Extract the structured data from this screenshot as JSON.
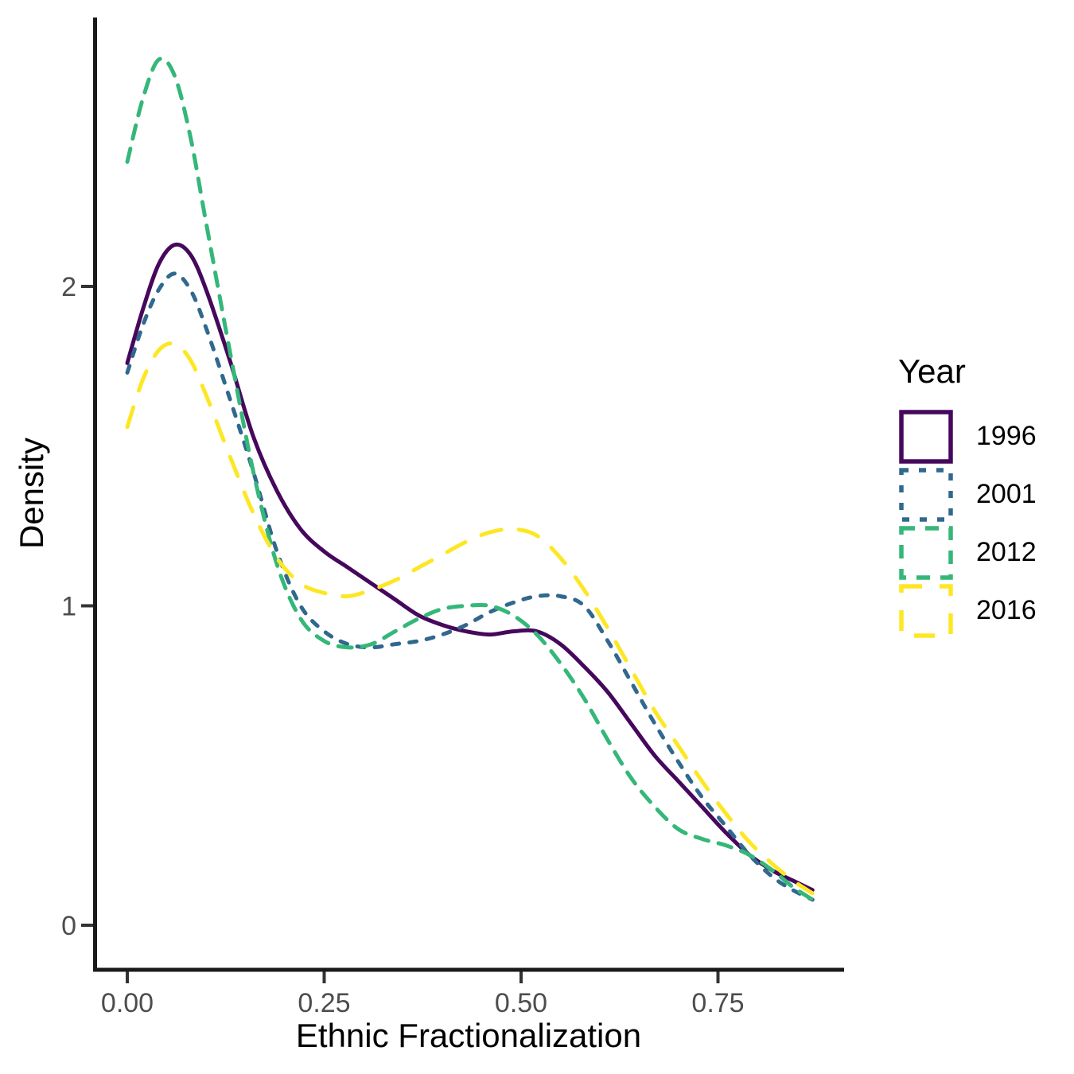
{
  "chart_data": {
    "type": "line",
    "subtype": "kernel-density",
    "title": "",
    "xlabel": "Ethnic Fractionalization",
    "ylabel": "Density",
    "x_ticks": {
      "values": [
        0,
        0.25,
        0.5,
        0.75
      ],
      "labels": [
        "0.00",
        "0.25",
        "0.50",
        "0.75"
      ]
    },
    "y_ticks": {
      "values": [
        0,
        1,
        2
      ],
      "labels": [
        "0",
        "1",
        "2"
      ]
    },
    "xlim": [
      -0.044,
      0.91
    ],
    "ylim": [
      -0.14,
      2.84
    ],
    "grid": "off",
    "legend": {
      "title": "Year",
      "position": "right",
      "entries": [
        "1996",
        "2001",
        "2012",
        "2016"
      ]
    },
    "style": {
      "axis_color": "#1a1a1a",
      "tick_color": "#333333",
      "tick_label_color": "#4d4d4d",
      "background": "#ffffff",
      "line_width": 5
    },
    "series": [
      {
        "name": "1996",
        "color": "#46085C",
        "linetype": "solid",
        "dash": null,
        "points": [
          [
            0,
            1.76
          ],
          [
            0.02,
            1.93
          ],
          [
            0.04,
            2.07
          ],
          [
            0.06,
            2.13
          ],
          [
            0.08,
            2.1
          ],
          [
            0.1,
            1.99
          ],
          [
            0.13,
            1.77
          ],
          [
            0.16,
            1.53
          ],
          [
            0.19,
            1.36
          ],
          [
            0.22,
            1.24
          ],
          [
            0.25,
            1.17
          ],
          [
            0.28,
            1.12
          ],
          [
            0.31,
            1.07
          ],
          [
            0.34,
            1.02
          ],
          [
            0.37,
            0.97
          ],
          [
            0.4,
            0.94
          ],
          [
            0.43,
            0.92
          ],
          [
            0.46,
            0.91
          ],
          [
            0.49,
            0.92
          ],
          [
            0.52,
            0.92
          ],
          [
            0.55,
            0.88
          ],
          [
            0.58,
            0.81
          ],
          [
            0.61,
            0.73
          ],
          [
            0.64,
            0.63
          ],
          [
            0.67,
            0.53
          ],
          [
            0.7,
            0.45
          ],
          [
            0.73,
            0.37
          ],
          [
            0.76,
            0.29
          ],
          [
            0.79,
            0.22
          ],
          [
            0.82,
            0.17
          ],
          [
            0.845,
            0.14
          ],
          [
            0.87,
            0.11
          ]
        ]
      },
      {
        "name": "2001",
        "color": "#31688E",
        "linetype": "dashed",
        "dash": [
          9,
          13
        ],
        "points": [
          [
            0,
            1.73
          ],
          [
            0.02,
            1.88
          ],
          [
            0.04,
            1.99
          ],
          [
            0.06,
            2.04
          ],
          [
            0.08,
            1.99
          ],
          [
            0.1,
            1.87
          ],
          [
            0.13,
            1.65
          ],
          [
            0.16,
            1.42
          ],
          [
            0.19,
            1.17
          ],
          [
            0.22,
            1.0
          ],
          [
            0.25,
            0.92
          ],
          [
            0.28,
            0.88
          ],
          [
            0.31,
            0.87
          ],
          [
            0.34,
            0.88
          ],
          [
            0.37,
            0.89
          ],
          [
            0.4,
            0.91
          ],
          [
            0.43,
            0.94
          ],
          [
            0.46,
            0.98
          ],
          [
            0.49,
            1.01
          ],
          [
            0.52,
            1.03
          ],
          [
            0.55,
            1.03
          ],
          [
            0.58,
            1.0
          ],
          [
            0.61,
            0.89
          ],
          [
            0.64,
            0.76
          ],
          [
            0.67,
            0.63
          ],
          [
            0.7,
            0.51
          ],
          [
            0.73,
            0.4
          ],
          [
            0.76,
            0.31
          ],
          [
            0.79,
            0.22
          ],
          [
            0.82,
            0.15
          ],
          [
            0.845,
            0.11
          ],
          [
            0.87,
            0.08
          ]
        ]
      },
      {
        "name": "2012",
        "color": "#35B779",
        "linetype": "longdash",
        "dash": [
          17,
          13
        ],
        "points": [
          [
            0,
            2.39
          ],
          [
            0.02,
            2.59
          ],
          [
            0.04,
            2.71
          ],
          [
            0.06,
            2.66
          ],
          [
            0.08,
            2.47
          ],
          [
            0.1,
            2.2
          ],
          [
            0.13,
            1.8
          ],
          [
            0.16,
            1.42
          ],
          [
            0.19,
            1.13
          ],
          [
            0.22,
            0.96
          ],
          [
            0.25,
            0.89
          ],
          [
            0.28,
            0.87
          ],
          [
            0.31,
            0.88
          ],
          [
            0.34,
            0.92
          ],
          [
            0.37,
            0.96
          ],
          [
            0.4,
            0.99
          ],
          [
            0.43,
            1.0
          ],
          [
            0.46,
            1.0
          ],
          [
            0.49,
            0.97
          ],
          [
            0.52,
            0.91
          ],
          [
            0.55,
            0.82
          ],
          [
            0.58,
            0.71
          ],
          [
            0.61,
            0.58
          ],
          [
            0.64,
            0.46
          ],
          [
            0.67,
            0.37
          ],
          [
            0.7,
            0.3
          ],
          [
            0.73,
            0.27
          ],
          [
            0.76,
            0.25
          ],
          [
            0.79,
            0.22
          ],
          [
            0.82,
            0.17
          ],
          [
            0.845,
            0.12
          ],
          [
            0.87,
            0.08
          ]
        ]
      },
      {
        "name": "2016",
        "color": "#FDE725",
        "linetype": "longdash-spaced",
        "dash": [
          26,
          22
        ],
        "points": [
          [
            0,
            1.56
          ],
          [
            0.02,
            1.71
          ],
          [
            0.04,
            1.8
          ],
          [
            0.06,
            1.82
          ],
          [
            0.08,
            1.77
          ],
          [
            0.1,
            1.66
          ],
          [
            0.13,
            1.47
          ],
          [
            0.16,
            1.29
          ],
          [
            0.19,
            1.15
          ],
          [
            0.22,
            1.07
          ],
          [
            0.25,
            1.04
          ],
          [
            0.28,
            1.03
          ],
          [
            0.31,
            1.05
          ],
          [
            0.34,
            1.08
          ],
          [
            0.37,
            1.12
          ],
          [
            0.4,
            1.16
          ],
          [
            0.43,
            1.2
          ],
          [
            0.46,
            1.23
          ],
          [
            0.49,
            1.24
          ],
          [
            0.52,
            1.22
          ],
          [
            0.55,
            1.15
          ],
          [
            0.58,
            1.05
          ],
          [
            0.61,
            0.93
          ],
          [
            0.64,
            0.8
          ],
          [
            0.67,
            0.67
          ],
          [
            0.7,
            0.56
          ],
          [
            0.73,
            0.45
          ],
          [
            0.76,
            0.35
          ],
          [
            0.79,
            0.26
          ],
          [
            0.82,
            0.19
          ],
          [
            0.845,
            0.14
          ],
          [
            0.87,
            0.1
          ]
        ]
      }
    ]
  }
}
